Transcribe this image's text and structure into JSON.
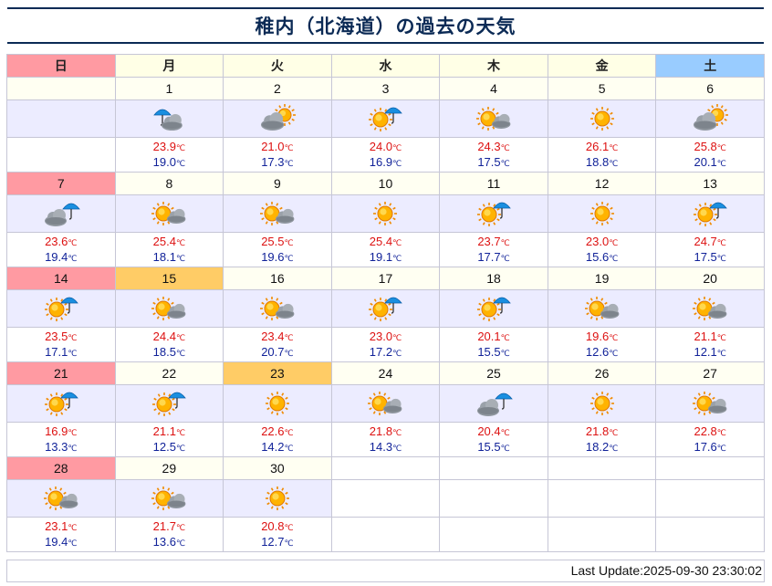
{
  "title": "稚内（北海道）の過去の天気",
  "weekdays": [
    "日",
    "月",
    "火",
    "水",
    "木",
    "金",
    "土"
  ],
  "temp_unit": "℃",
  "weeks": [
    [
      null,
      {
        "day": "1",
        "icon": "umbrella-cloud",
        "high": "23.9",
        "low": "19.0",
        "tone": "normal"
      },
      {
        "day": "2",
        "icon": "cloud-sun",
        "high": "21.0",
        "low": "17.3",
        "tone": "normal"
      },
      {
        "day": "3",
        "icon": "sun-umbrella",
        "high": "24.0",
        "low": "16.9",
        "tone": "normal"
      },
      {
        "day": "4",
        "icon": "sun-cloud",
        "high": "24.3",
        "low": "17.5",
        "tone": "normal"
      },
      {
        "day": "5",
        "icon": "sun",
        "high": "26.1",
        "low": "18.8",
        "tone": "normal"
      },
      {
        "day": "6",
        "icon": "cloud-sun",
        "high": "25.8",
        "low": "20.1",
        "tone": "normal"
      }
    ],
    [
      {
        "day": "7",
        "icon": "cloud-umbrella",
        "high": "23.6",
        "low": "19.4",
        "tone": "sun"
      },
      {
        "day": "8",
        "icon": "sun-cloud",
        "high": "25.4",
        "low": "18.1",
        "tone": "normal"
      },
      {
        "day": "9",
        "icon": "sun-cloud",
        "high": "25.5",
        "low": "19.6",
        "tone": "normal"
      },
      {
        "day": "10",
        "icon": "sun",
        "high": "25.4",
        "low": "19.1",
        "tone": "normal"
      },
      {
        "day": "11",
        "icon": "sun-umbrella",
        "high": "23.7",
        "low": "17.7",
        "tone": "normal"
      },
      {
        "day": "12",
        "icon": "sun",
        "high": "23.0",
        "low": "15.6",
        "tone": "normal"
      },
      {
        "day": "13",
        "icon": "sun-umbrella",
        "high": "24.7",
        "low": "17.5",
        "tone": "normal"
      }
    ],
    [
      {
        "day": "14",
        "icon": "sun-umbrella",
        "high": "23.5",
        "low": "17.1",
        "tone": "sun"
      },
      {
        "day": "15",
        "icon": "sun-cloud",
        "high": "24.4",
        "low": "18.5",
        "tone": "holiday"
      },
      {
        "day": "16",
        "icon": "sun-cloud",
        "high": "23.4",
        "low": "20.7",
        "tone": "normal"
      },
      {
        "day": "17",
        "icon": "sun-umbrella",
        "high": "23.0",
        "low": "17.2",
        "tone": "normal"
      },
      {
        "day": "18",
        "icon": "sun-umbrella",
        "high": "20.1",
        "low": "15.5",
        "tone": "normal"
      },
      {
        "day": "19",
        "icon": "sun-cloud",
        "high": "19.6",
        "low": "12.6",
        "tone": "normal"
      },
      {
        "day": "20",
        "icon": "sun-cloud",
        "high": "21.1",
        "low": "12.1",
        "tone": "normal"
      }
    ],
    [
      {
        "day": "21",
        "icon": "sun-umbrella",
        "high": "16.9",
        "low": "13.3",
        "tone": "sun"
      },
      {
        "day": "22",
        "icon": "sun-umbrella",
        "high": "21.1",
        "low": "12.5",
        "tone": "normal"
      },
      {
        "day": "23",
        "icon": "sun",
        "high": "22.6",
        "low": "14.2",
        "tone": "holiday"
      },
      {
        "day": "24",
        "icon": "sun-cloud",
        "high": "21.8",
        "low": "14.3",
        "tone": "normal"
      },
      {
        "day": "25",
        "icon": "cloud-umbrella",
        "high": "20.4",
        "low": "15.5",
        "tone": "normal"
      },
      {
        "day": "26",
        "icon": "sun",
        "high": "21.8",
        "low": "18.2",
        "tone": "normal"
      },
      {
        "day": "27",
        "icon": "sun-cloud",
        "high": "22.8",
        "low": "17.6",
        "tone": "normal"
      }
    ],
    [
      {
        "day": "28",
        "icon": "sun-cloud",
        "high": "23.1",
        "low": "19.4",
        "tone": "sun"
      },
      {
        "day": "29",
        "icon": "sun-cloud",
        "high": "21.7",
        "low": "13.6",
        "tone": "normal"
      },
      {
        "day": "30",
        "icon": "sun",
        "high": "20.8",
        "low": "12.7",
        "tone": "normal"
      },
      null,
      null,
      null,
      null
    ]
  ],
  "last_update": "Last Update:2025-09-30 23:30:02",
  "colors": {
    "high": "#dd1111",
    "low": "#112299",
    "sunday": "#ff9aa2",
    "saturday": "#99ccff",
    "holiday": "#ffcc66"
  }
}
